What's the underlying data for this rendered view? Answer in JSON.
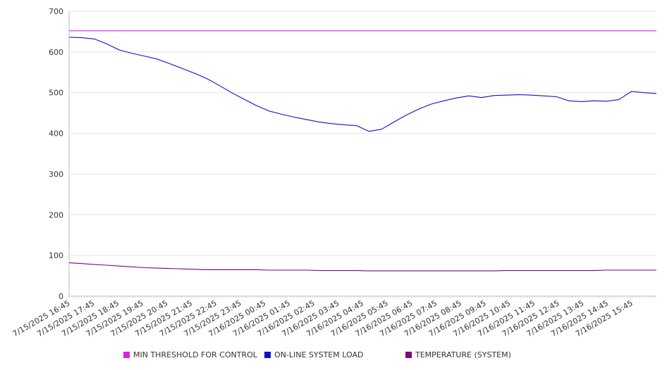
{
  "chart_data": {
    "type": "line",
    "title": "",
    "xlabel": "",
    "ylabel": "",
    "ylim": [
      0,
      700
    ],
    "yticks": [
      0,
      100,
      200,
      300,
      400,
      500,
      600,
      700
    ],
    "grid": "horizontal",
    "legend_position": "bottom",
    "x_tick_labels": [
      "7/15/2025 16:45",
      "7/15/2025 17:45",
      "7/15/2025 18:45",
      "7/15/2025 19:45",
      "7/15/2025 20:45",
      "7/15/2025 21:45",
      "7/15/2025 22:45",
      "7/15/2025 23:45",
      "7/16/2025 00:45",
      "7/16/2025 01:45",
      "7/16/2025 02:45",
      "7/16/2025 03:45",
      "7/16/2025 04:45",
      "7/16/2025 05:45",
      "7/16/2025 06:45",
      "7/16/2025 07:45",
      "7/16/2025 08:45",
      "7/16/2025 09:45",
      "7/16/2025 10:45",
      "7/16/2025 11:45",
      "7/16/2025 12:45",
      "7/16/2025 13:45",
      "7/16/2025 14:45",
      "7/16/2025 15:45"
    ],
    "x": [
      "7/15/2025 16:45",
      "7/15/2025 17:15",
      "7/15/2025 17:45",
      "7/15/2025 18:15",
      "7/15/2025 18:45",
      "7/15/2025 19:15",
      "7/15/2025 19:45",
      "7/15/2025 20:15",
      "7/15/2025 20:45",
      "7/15/2025 21:15",
      "7/15/2025 21:45",
      "7/15/2025 22:15",
      "7/15/2025 22:45",
      "7/15/2025 23:15",
      "7/15/2025 23:45",
      "7/16/2025 00:15",
      "7/16/2025 00:45",
      "7/16/2025 01:15",
      "7/16/2025 01:45",
      "7/16/2025 02:15",
      "7/16/2025 02:45",
      "7/16/2025 03:15",
      "7/16/2025 03:45",
      "7/16/2025 04:15",
      "7/16/2025 04:45",
      "7/16/2025 05:15",
      "7/16/2025 05:45",
      "7/16/2025 06:15",
      "7/16/2025 06:45",
      "7/16/2025 07:15",
      "7/16/2025 07:45",
      "7/16/2025 08:15",
      "7/16/2025 08:45",
      "7/16/2025 09:15",
      "7/16/2025 09:45",
      "7/16/2025 10:15",
      "7/16/2025 10:45",
      "7/16/2025 11:15",
      "7/16/2025 11:45",
      "7/16/2025 12:15",
      "7/16/2025 12:45",
      "7/16/2025 13:15",
      "7/16/2025 13:45",
      "7/16/2025 14:15",
      "7/16/2025 14:45",
      "7/16/2025 15:15",
      "7/16/2025 15:45",
      "7/16/2025 16:15"
    ],
    "series": [
      {
        "name": "MIN THRESHOLD FOR CONTROL",
        "color": "#e020e0",
        "values": [
          652,
          652,
          652,
          652,
          652,
          652,
          652,
          652,
          652,
          652,
          652,
          652,
          652,
          652,
          652,
          652,
          652,
          652,
          652,
          652,
          652,
          652,
          652,
          652,
          652,
          652,
          652,
          652,
          652,
          652,
          652,
          652,
          652,
          652,
          652,
          652,
          652,
          652,
          652,
          652,
          652,
          652,
          652,
          652,
          652,
          652,
          652,
          652
        ]
      },
      {
        "name": "ON-LINE SYSTEM LOAD",
        "color": "#1010d0",
        "values": [
          636,
          635,
          632,
          620,
          605,
          597,
          590,
          583,
          572,
          560,
          548,
          535,
          518,
          500,
          484,
          468,
          455,
          447,
          440,
          434,
          428,
          424,
          421,
          419,
          405,
          410,
          428,
          445,
          460,
          472,
          480,
          487,
          492,
          488,
          493,
          494,
          495,
          494,
          492,
          490,
          480,
          478,
          480,
          479,
          483,
          503,
          500,
          498
        ]
      },
      {
        "name": "TEMPERATURE (SYSTEM)",
        "color": "#800080",
        "values": [
          82,
          80,
          78,
          76,
          74,
          72,
          70,
          69,
          68,
          67,
          66,
          65,
          65,
          65,
          65,
          65,
          64,
          64,
          64,
          64,
          63,
          63,
          63,
          63,
          62,
          62,
          62,
          62,
          62,
          62,
          62,
          62,
          62,
          62,
          62,
          63,
          63,
          63,
          63,
          63,
          63,
          63,
          63,
          64,
          64,
          64,
          64,
          64
        ]
      }
    ]
  }
}
